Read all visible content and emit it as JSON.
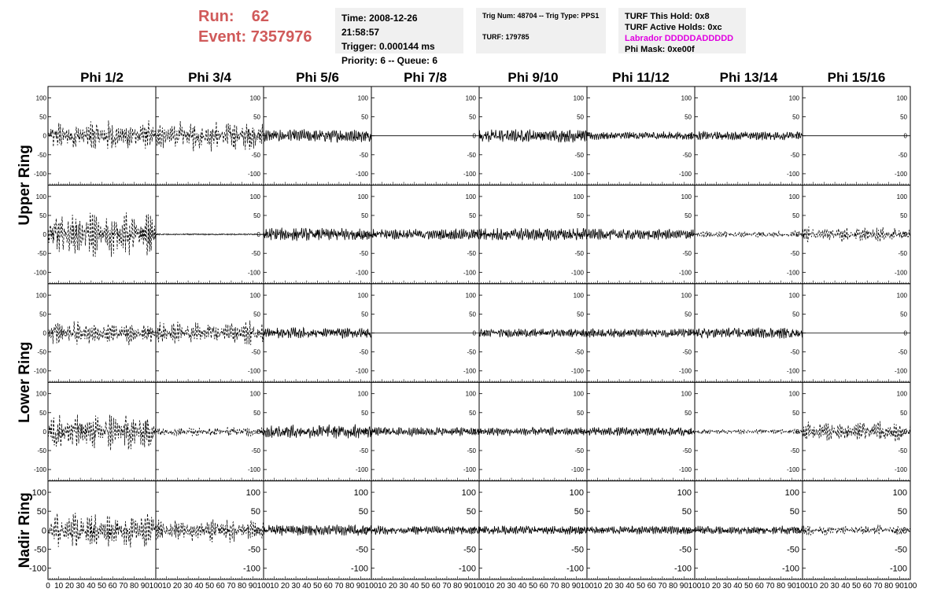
{
  "run": {
    "run_label": "Run:",
    "run_value": "62",
    "event_label": "Event:",
    "event_value": "7357976"
  },
  "info1": {
    "time": "Time: 2008-12-26 21:58:57",
    "trigger": "Trigger: 0.000144 ms",
    "priority": "Priority: 6 -- Queue: 6"
  },
  "info2": {
    "trig": "Trig Num: 48704 -- Trig Type: PPS1",
    "turf": "TURF: 179785"
  },
  "info3": {
    "hold": "TURF This Hold: 0x8",
    "active": "TURF Active Holds: 0xc",
    "labrador": "Labrador DDDDDADDDDD",
    "phimask": "Phi Mask: 0xe00f"
  },
  "colors": {
    "info_bg": "#f0f0f0",
    "run_text": "#d05a5a",
    "labrador": "#e000e0"
  },
  "chart_data": {
    "type": "line",
    "columns": [
      "Phi 1/2",
      "Phi 3/4",
      "Phi 5/6",
      "Phi 7/8",
      "Phi 9/10",
      "Phi 11/12",
      "Phi 13/14",
      "Phi 15/16"
    ],
    "ring_labels": [
      "Upper Ring",
      "Lower Ring",
      "Nadir Ring"
    ],
    "rows": 5,
    "ylim": [
      -130,
      130
    ],
    "yticks": [
      -100,
      -50,
      0,
      50,
      100
    ],
    "xlim": [
      0,
      100
    ],
    "xtick_labels_first": [
      "0",
      "10",
      "20",
      "30",
      "40",
      "50",
      "60",
      "70",
      "80",
      "90",
      "100"
    ],
    "xtick_labels_other": [
      "10",
      "20",
      "30",
      "40",
      "50",
      "60",
      "70",
      "80",
      "90",
      "100"
    ],
    "amplitudes": [
      [
        45,
        45,
        18,
        0,
        18,
        12,
        12,
        0
      ],
      [
        65,
        2,
        18,
        15,
        18,
        15,
        10,
        22
      ],
      [
        35,
        35,
        15,
        0,
        12,
        12,
        15,
        0
      ],
      [
        55,
        15,
        20,
        12,
        12,
        12,
        8,
        30
      ],
      [
        50,
        35,
        15,
        12,
        12,
        12,
        12,
        15
      ]
    ],
    "dashed": [
      [
        true,
        true,
        false,
        false,
        false,
        false,
        false,
        false
      ],
      [
        true,
        false,
        false,
        false,
        false,
        false,
        true,
        true
      ],
      [
        true,
        true,
        false,
        false,
        false,
        false,
        false,
        false
      ],
      [
        true,
        true,
        false,
        false,
        false,
        false,
        true,
        true
      ],
      [
        true,
        true,
        false,
        false,
        false,
        false,
        false,
        true
      ]
    ]
  }
}
